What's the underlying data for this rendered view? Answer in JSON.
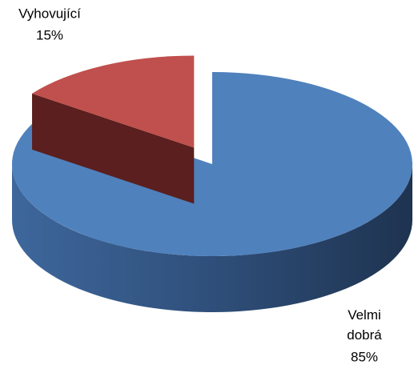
{
  "chart_data": {
    "type": "pie",
    "categories": [
      "Velmi dobrá",
      "Vyhovující"
    ],
    "values": [
      85,
      15
    ],
    "value_labels": [
      "85%",
      "15%"
    ],
    "colors": [
      "#4f81bd",
      "#c0504d"
    ]
  }
}
